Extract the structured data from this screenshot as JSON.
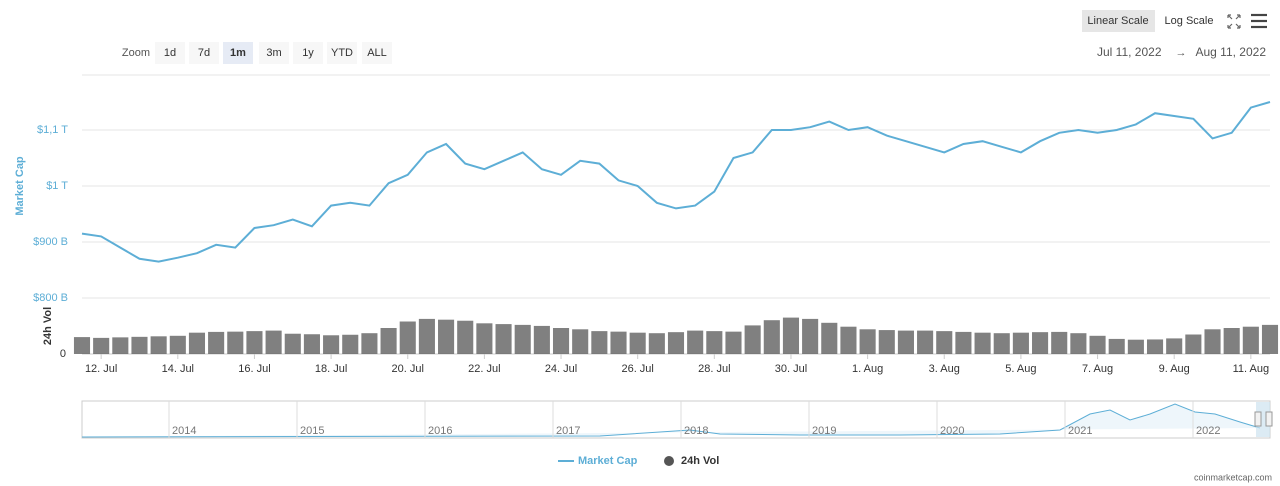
{
  "toolbar": {
    "zoom": "Zoom",
    "ranges": [
      "1d",
      "7d",
      "1m",
      "3m",
      "1y",
      "YTD",
      "ALL"
    ],
    "active_range": "1m",
    "scales": [
      "Linear Scale",
      "Log Scale"
    ],
    "date_from": "Jul 11, 2022",
    "arrow": "→",
    "date_to": "Aug 11, 2022"
  },
  "chart_data": {
    "type": "line",
    "y_label": "Market Cap",
    "y2_label": "24h Vol",
    "x": [
      0.5,
      1,
      1.5,
      2,
      2.5,
      3,
      3.5,
      4,
      4.5,
      5,
      5.5,
      6,
      6.5,
      7,
      7.5,
      8,
      8.5,
      9,
      9.5,
      10,
      10.5,
      11,
      11.5,
      12,
      12.5,
      13,
      13.5,
      14,
      14.5,
      15,
      15.5,
      16,
      16.5,
      17,
      17.5,
      18,
      18.5,
      19,
      19.5,
      20,
      20.5,
      21,
      21.5,
      22,
      22.5,
      23,
      23.5,
      24,
      24.5,
      25,
      25.5,
      26,
      26.5,
      27,
      27.5,
      28,
      28.5,
      29,
      29.5,
      30,
      30.5,
      31,
      31.5
    ],
    "xlim": [
      0.5,
      31.5
    ],
    "xticks": [
      {
        "value": 1,
        "label": "12. Jul"
      },
      {
        "value": 3,
        "label": "14. Jul"
      },
      {
        "value": 5,
        "label": "16. Jul"
      },
      {
        "value": 7,
        "label": "18. Jul"
      },
      {
        "value": 9,
        "label": "20. Jul"
      },
      {
        "value": 11,
        "label": "22. Jul"
      },
      {
        "value": 13,
        "label": "24. Jul"
      },
      {
        "value": 15,
        "label": "26. Jul"
      },
      {
        "value": 17,
        "label": "28. Jul"
      },
      {
        "value": 19,
        "label": "30. Jul"
      },
      {
        "value": 21,
        "label": "1. Aug"
      },
      {
        "value": 23,
        "label": "3. Aug"
      },
      {
        "value": 25,
        "label": "5. Aug"
      },
      {
        "value": 27,
        "label": "7. Aug"
      },
      {
        "value": 29,
        "label": "9. Aug"
      },
      {
        "value": 31,
        "label": "11. Aug"
      }
    ],
    "ylim": [
      800,
      1200
    ],
    "yticks": [
      {
        "value": 800,
        "label": "$800 B"
      },
      {
        "value": 900,
        "label": "$900 B"
      },
      {
        "value": 1000,
        "label": "$1 T"
      },
      {
        "value": 1100,
        "label": "$1,1 T"
      }
    ],
    "y2lim": [
      0,
      200
    ],
    "y2ticks": [
      0
    ],
    "grid": true,
    "series": [
      {
        "name": "Market Cap",
        "color": "#5daed6",
        "values": [
          915,
          910,
          890,
          870,
          865,
          872,
          880,
          895,
          890,
          925,
          930,
          940,
          928,
          965,
          970,
          965,
          1005,
          1020,
          1060,
          1075,
          1040,
          1030,
          1045,
          1060,
          1030,
          1020,
          1045,
          1040,
          1010,
          1000,
          970,
          960,
          965,
          990,
          1050,
          1060,
          1100,
          1100,
          1105,
          1115,
          1100,
          1105,
          1090,
          1080,
          1070,
          1060,
          1075,
          1080,
          1070,
          1060,
          1080,
          1095,
          1100,
          1095,
          1100,
          1110,
          1130,
          1125,
          1120,
          1085,
          1095,
          1140,
          1150
        ]
      },
      {
        "name": "24h Vol",
        "color": "#555555",
        "axis": "y2",
        "values": [
          65,
          62,
          64,
          66,
          68,
          70,
          82,
          85,
          86,
          88,
          90,
          78,
          76,
          72,
          74,
          80,
          100,
          125,
          135,
          132,
          128,
          118,
          115,
          112,
          108,
          100,
          95,
          88,
          86,
          82,
          80,
          84,
          90,
          88,
          86,
          110,
          130,
          140,
          135,
          120,
          105,
          95,
          92,
          90,
          90,
          88,
          85,
          82,
          80,
          82,
          84,
          85,
          80,
          70,
          58,
          55,
          56,
          60,
          75,
          95,
          100,
          105,
          112
        ]
      }
    ],
    "legend": "bottom",
    "navigator": {
      "years": [
        "2014",
        "2015",
        "2016",
        "2017",
        "2018",
        "2019",
        "2020",
        "2021",
        "2022"
      ]
    },
    "credit": "coinmarketcap.com"
  }
}
